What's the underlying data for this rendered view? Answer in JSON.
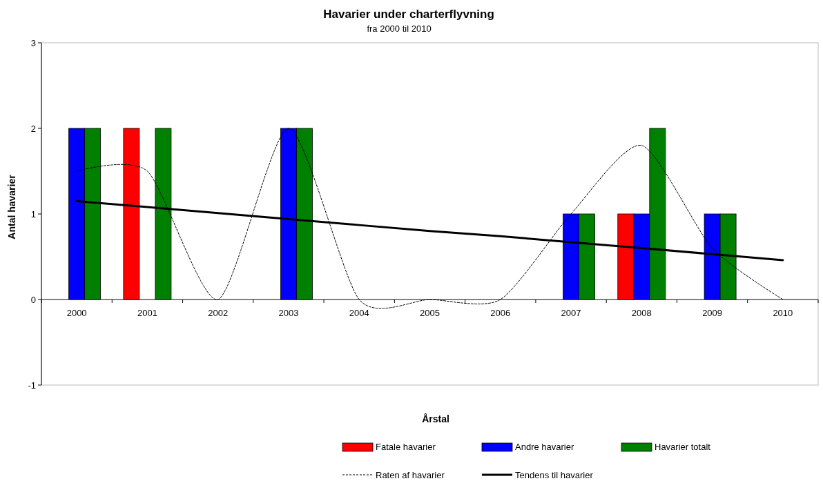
{
  "chart_data": {
    "type": "bar",
    "title": "Havarier under charterflyvning",
    "subtitle": "fra 2000 til 2010",
    "xlabel": "Årstal",
    "ylabel": "Antal havarier",
    "categories": [
      "2000",
      "2001",
      "2002",
      "2003",
      "2004",
      "2005",
      "2006",
      "2007",
      "2008",
      "2009",
      "2010"
    ],
    "series": [
      {
        "name": "Fatale havarier",
        "color": "#ff0000",
        "values": [
          0,
          2,
          0,
          0,
          0,
          0,
          0,
          0,
          1,
          0,
          0
        ]
      },
      {
        "name": "Andre havarier",
        "color": "#0000ff",
        "values": [
          2,
          0,
          0,
          2,
          0,
          0,
          0,
          1,
          1,
          1,
          0
        ]
      },
      {
        "name": "Havarier totalt",
        "color": "#008000",
        "values": [
          2,
          2,
          0,
          2,
          0,
          0,
          0,
          1,
          2,
          1,
          0
        ]
      },
      {
        "name": "Raten af havarier",
        "type": "line",
        "color": "#000000",
        "line_style": "dashed",
        "values": [
          1.5,
          1.5,
          0,
          2,
          0,
          0,
          0,
          1,
          1.8,
          0.6,
          0
        ]
      },
      {
        "name": "Tendens til havarier",
        "type": "line",
        "color": "#000000",
        "line_style": "solid",
        "values": [
          1.15,
          1.08,
          1.01,
          0.94,
          0.87,
          0.8,
          0.74,
          0.67,
          0.6,
          0.53,
          0.46
        ]
      }
    ],
    "ylim": [
      -1,
      3
    ],
    "yticks": [
      -1,
      0,
      1,
      2,
      3
    ],
    "grid": false,
    "legend": "bottom",
    "marker": "none"
  }
}
